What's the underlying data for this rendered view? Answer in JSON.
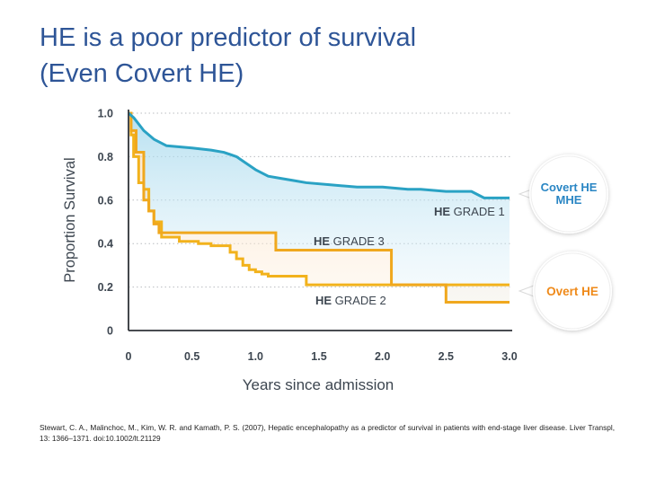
{
  "slide": {
    "title_line1": "HE is a poor predictor of survival",
    "title_line2": "(Even Covert HE)",
    "citation": "Stewart, C. A., Malinchoc, M., Kim, W. R. and Kamath, P. S. (2007), Hepatic encephalopathy as a predictor of survival in patients with end-stage liver disease. Liver Transpl, 13: 1366–1371. doi:10.1002/lt.21129"
  },
  "callouts": {
    "covert_line1": "Covert HE",
    "covert_line2": "MHE",
    "overt": "Overt HE"
  },
  "colors": {
    "grade1": "#2aa2c4",
    "grade3": "#f0a81e",
    "grade2": "#f2b21c",
    "title": "#2e5597",
    "callout_covert": "#2a86c4",
    "callout_overt": "#ef8a1a",
    "axis_text": "#3d4650"
  },
  "chart_data": {
    "type": "line",
    "subtype": "step (Kaplan-Meier survival)",
    "title": "",
    "xlabel": "Years since admission",
    "ylabel": "Proportion Survival",
    "xlim": [
      0,
      3.0
    ],
    "ylim": [
      0,
      1.0
    ],
    "x_ticks": [
      "0",
      "0.5",
      "1.0",
      "1.5",
      "2.0",
      "2.5",
      "3.0"
    ],
    "y_ticks": [
      "0",
      "0.2",
      "0.4",
      "0.6",
      "0.8",
      "1.0"
    ],
    "grid": "horizontal dotted",
    "series": [
      {
        "name": "HE GRADE 1",
        "label_bold": "HE",
        "label_rest": " GRADE 1",
        "x": [
          0,
          0.04,
          0.08,
          0.12,
          0.2,
          0.3,
          0.5,
          0.65,
          0.75,
          0.8,
          0.85,
          0.9,
          1.0,
          1.1,
          1.2,
          1.3,
          1.4,
          1.6,
          1.8,
          2.0,
          2.2,
          2.3,
          2.5,
          2.7,
          2.8,
          3.0
        ],
        "y": [
          1.0,
          0.98,
          0.95,
          0.92,
          0.88,
          0.85,
          0.84,
          0.83,
          0.82,
          0.81,
          0.8,
          0.78,
          0.74,
          0.71,
          0.7,
          0.69,
          0.68,
          0.67,
          0.66,
          0.66,
          0.65,
          0.65,
          0.64,
          0.64,
          0.61,
          0.61
        ]
      },
      {
        "name": "HE GRADE 3",
        "label_bold": "HE",
        "label_rest": " GRADE 3",
        "x": [
          0,
          0.02,
          0.06,
          0.12,
          0.16,
          0.2,
          0.24,
          1.16,
          2.07,
          2.5,
          3.0
        ],
        "y": [
          1.0,
          0.92,
          0.82,
          0.6,
          0.55,
          0.49,
          0.45,
          0.37,
          0.21,
          0.13,
          0.13
        ]
      },
      {
        "name": "HE GRADE 2",
        "label_bold": "HE",
        "label_rest": " GRADE 2",
        "x": [
          0,
          0.02,
          0.04,
          0.08,
          0.12,
          0.16,
          0.2,
          0.26,
          0.4,
          0.55,
          0.65,
          0.8,
          0.85,
          0.9,
          0.95,
          1.0,
          1.05,
          1.1,
          1.2,
          1.4,
          3.0
        ],
        "y": [
          1.0,
          0.9,
          0.8,
          0.68,
          0.65,
          0.55,
          0.5,
          0.43,
          0.41,
          0.4,
          0.39,
          0.36,
          0.33,
          0.3,
          0.28,
          0.27,
          0.26,
          0.25,
          0.25,
          0.21,
          0.21
        ]
      }
    ]
  }
}
